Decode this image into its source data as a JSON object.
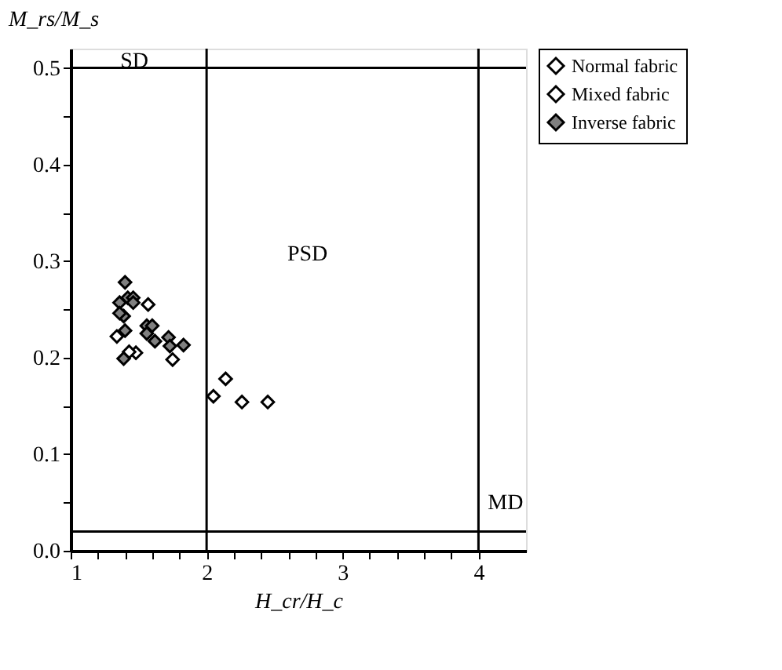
{
  "chart_data": {
    "type": "scatter",
    "xlabel": "H_cr/H_c",
    "ylabel": "M_rs/M_s",
    "xlim": [
      1,
      4.35
    ],
    "ylim": [
      0,
      0.52
    ],
    "xticks": [
      1,
      {
        "value": 1.2,
        "label": null
      },
      {
        "value": 1.4,
        "label": null
      },
      {
        "value": 1.6,
        "label": null
      },
      {
        "value": 1.8,
        "label": null
      },
      2,
      {
        "value": 2.2,
        "label": null
      },
      {
        "value": 2.4,
        "label": null
      },
      {
        "value": 2.6,
        "label": null
      },
      {
        "value": 2.8,
        "label": null
      },
      3,
      {
        "value": 3.2,
        "label": null
      },
      {
        "value": 3.4,
        "label": null
      },
      {
        "value": 3.6,
        "label": null
      },
      {
        "value": 3.8,
        "label": null
      },
      4
    ],
    "yticks": [
      {
        "value": 0,
        "label": "0.0"
      },
      {
        "value": 0.05,
        "label": null
      },
      0.1,
      {
        "value": 0.15,
        "label": null
      },
      0.2,
      {
        "value": 0.25,
        "label": null
      },
      0.3,
      {
        "value": 0.35,
        "label": null
      },
      0.4,
      {
        "value": 0.45,
        "label": null
      },
      0.5
    ],
    "marker": "diamond",
    "grid": false,
    "legend": "top right",
    "series": [
      {
        "name": "Normal fabric",
        "color": "#ffffff",
        "x": [
          1.57,
          1.34,
          1.48,
          1.43,
          1.75
        ],
        "values": [
          0.255,
          0.222,
          0.205,
          0.206,
          0.198
        ]
      },
      {
        "name": "Mixed fabric",
        "color": "#ffffff",
        "x": [
          2.05,
          2.14,
          2.26,
          2.45
        ],
        "values": [
          0.16,
          0.178,
          0.154,
          0.154
        ]
      },
      {
        "name": "Inverse fabric",
        "color": "#808080",
        "x": [
          1.4,
          1.36,
          1.42,
          1.46,
          1.46,
          1.39,
          1.36,
          1.4,
          1.56,
          1.6,
          1.56,
          1.62,
          1.72,
          1.73,
          1.83,
          1.39
        ],
        "values": [
          0.278,
          0.257,
          0.262,
          0.262,
          0.257,
          0.243,
          0.246,
          0.228,
          0.233,
          0.233,
          0.225,
          0.217,
          0.221,
          0.212,
          0.213,
          0.199
        ]
      }
    ],
    "ref_lines": [
      {
        "axis": "x",
        "value": 2,
        "color": "#000000",
        "line_style": "solid"
      },
      {
        "axis": "x",
        "value": 4,
        "color": "#000000",
        "line_style": "solid"
      },
      {
        "axis": "y",
        "value": 0.5,
        "color": "#000000",
        "line_style": "solid"
      },
      {
        "axis": "y",
        "value": 0.02,
        "color": "#000000",
        "line_style": "solid"
      }
    ],
    "annotations": [
      "SD",
      "PSD",
      "MD"
    ]
  }
}
